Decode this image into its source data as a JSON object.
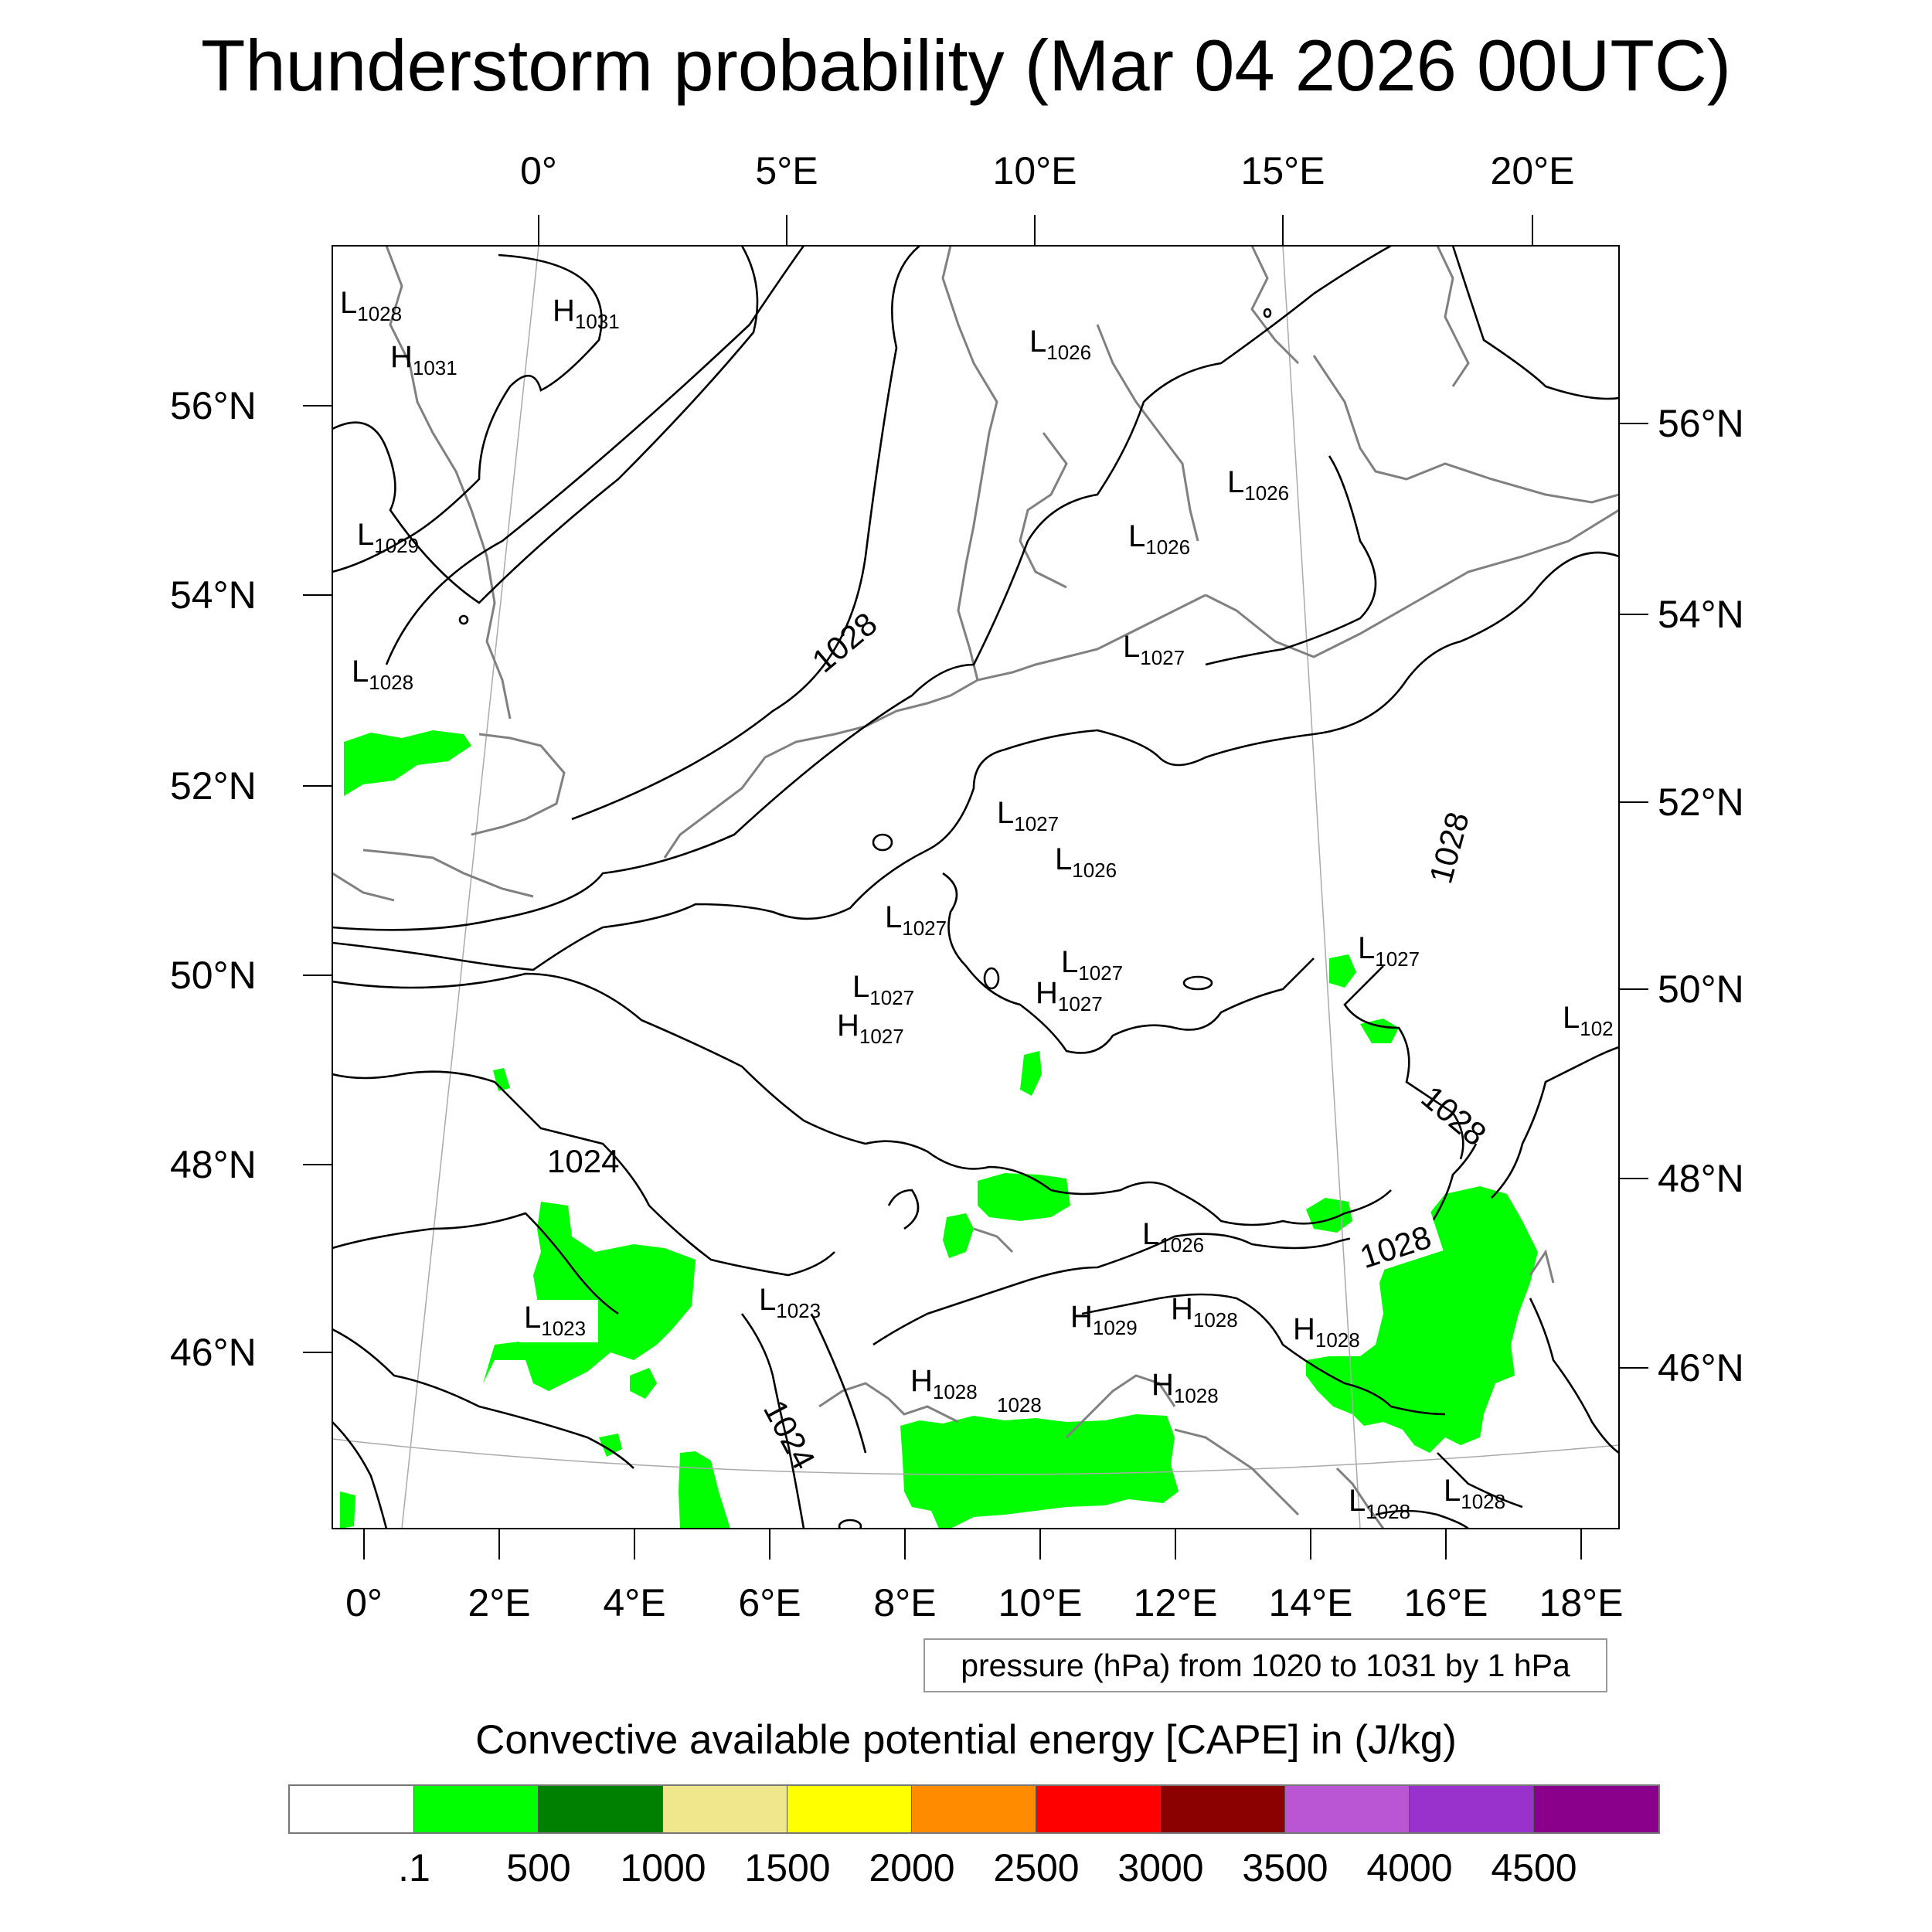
{
  "title": "Thunderstorm probability (Mar 04 2026 00UTC)",
  "top_longitudes": [
    "0°",
    "5°E",
    "10°E",
    "15°E",
    "20°E"
  ],
  "bottom_longitudes": [
    "0°",
    "2°E",
    "4°E",
    "6°E",
    "8°E",
    "10°E",
    "12°E",
    "14°E",
    "16°E",
    "18°E"
  ],
  "left_latitudes": [
    "56°N",
    "54°N",
    "52°N",
    "50°N",
    "48°N",
    "46°N"
  ],
  "right_latitudes": [
    "56°N",
    "54°N",
    "52°N",
    "50°N",
    "48°N",
    "46°N"
  ],
  "pressure_labels": [
    {
      "kind": "L",
      "value": "1028"
    },
    {
      "kind": "H",
      "value": "1031"
    },
    {
      "kind": "H",
      "value": "1031"
    },
    {
      "kind": "L",
      "value": "1029"
    },
    {
      "kind": "L",
      "value": "1028"
    },
    {
      "kind": "L",
      "value": "1026"
    },
    {
      "kind": "L",
      "value": "1026"
    },
    {
      "kind": "L",
      "value": "1026"
    },
    {
      "kind": "L",
      "value": "1027"
    },
    {
      "kind": "L",
      "value": "1027"
    },
    {
      "kind": "L",
      "value": "1026"
    },
    {
      "kind": "L",
      "value": "1027"
    },
    {
      "kind": "L",
      "value": "1027"
    },
    {
      "kind": "L",
      "value": "1027"
    },
    {
      "kind": "H",
      "value": "1027"
    },
    {
      "kind": "H",
      "value": "1027"
    },
    {
      "kind": "L",
      "value": "1027"
    },
    {
      "kind": "L",
      "value": "102"
    },
    {
      "kind": "L",
      "value": "1026"
    },
    {
      "kind": "L",
      "value": "1023"
    },
    {
      "kind": "L",
      "value": "1023"
    },
    {
      "kind": "H",
      "value": "1029"
    },
    {
      "kind": "H",
      "value": "1028"
    },
    {
      "kind": "H",
      "value": "1028"
    },
    {
      "kind": "H",
      "value": "1028"
    },
    {
      "kind": "H",
      "value": "1028"
    },
    {
      "kind": "L",
      "value": "1028"
    },
    {
      "kind": "L",
      "value": "1028"
    },
    {
      "kind": "",
      "value": "1028"
    }
  ],
  "contour_labels": [
    "1028",
    "1028",
    "1028",
    "1028",
    "1024",
    "1024"
  ],
  "pressure_note": "pressure (hPa) from 1020 to 1031 by 1 hPa",
  "colorbar": {
    "title": "Convective available potential energy [CAPE] in (J/kg)",
    "colors": [
      "#ffffff",
      "#00ff00",
      "#008000",
      "#f0e68c",
      "#ffff00",
      "#ff8c00",
      "#ff0000",
      "#8b0000",
      "#ba55d3",
      "#9932cc",
      "#8b008b"
    ],
    "ticks": [
      ".1",
      "500",
      "1000",
      "1500",
      "2000",
      "2500",
      "3000",
      "3500",
      "4000",
      "4500"
    ]
  },
  "cape_color": "#00ff00"
}
